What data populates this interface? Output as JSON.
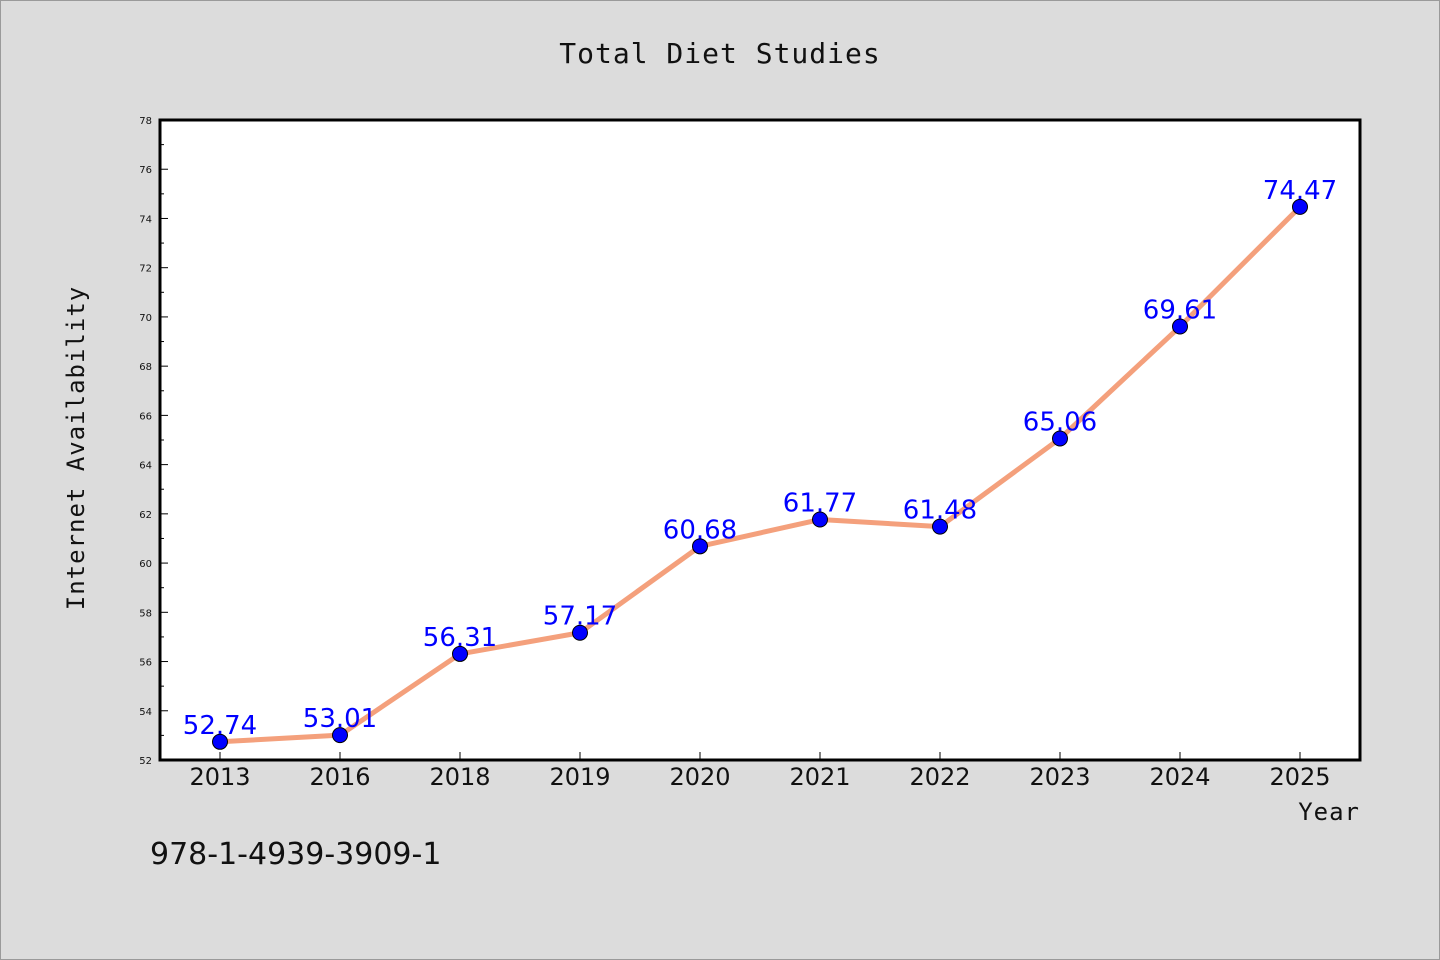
{
  "chart_data": {
    "type": "line",
    "title": "Total Diet Studies",
    "xlabel": "Year",
    "ylabel": "Internet Availability",
    "categories": [
      "2013",
      "2016",
      "2018",
      "2019",
      "2020",
      "2021",
      "2022",
      "2023",
      "2024",
      "2025"
    ],
    "values": [
      52.74,
      53.01,
      56.31,
      57.17,
      60.68,
      61.77,
      61.48,
      65.06,
      69.61,
      74.47
    ],
    "data_labels": [
      "52.74",
      "53.01",
      "56.31",
      "57.17",
      "60.68",
      "61.77",
      "61.48",
      "65.06",
      "69.61",
      "74.47"
    ],
    "ylim": [
      52,
      78
    ],
    "yticks": [
      "52",
      "54",
      "56",
      "58",
      "60",
      "62",
      "64",
      "66",
      "68",
      "70",
      "72",
      "74",
      "76",
      "78"
    ],
    "grid": false,
    "line_color": "#f4a07c",
    "marker_color": "#0000ff",
    "label_color": "#0000ff",
    "background": "#dcdcdc"
  },
  "footer_text": "978-1-4939-3909-1"
}
